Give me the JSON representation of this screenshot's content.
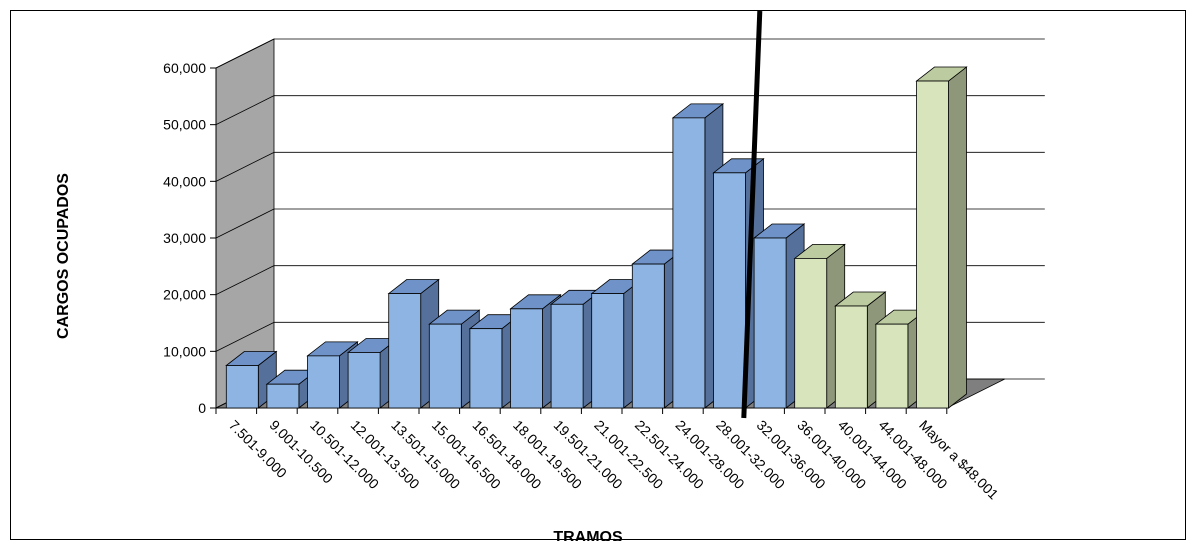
{
  "chart_data": {
    "type": "bar",
    "title": "",
    "xlabel": "TRAMOS",
    "ylabel": "CARGOS OCUPADOS",
    "ylim": [
      0,
      60000
    ],
    "yticks": [
      "0",
      "10,000",
      "20,000",
      "30,000",
      "40,000",
      "50,000",
      "60,000"
    ],
    "ytick_values": [
      0,
      10000,
      20000,
      30000,
      40000,
      50000,
      60000
    ],
    "grid": true,
    "three_d": true,
    "categories": [
      "7.501-9.000",
      "9.001-10.500",
      "10.501-12.000",
      "12.001-13.500",
      "13.501-15.000",
      "15.001-16.500",
      "16.501-18.000",
      "18.001-19.500",
      "19.501-21.000",
      "21.001-22.500",
      "22.501-24.000",
      "24.001-28.000",
      "28.001-32.000",
      "32.001-36.000",
      "36.001-40.000",
      "40.001-44.000",
      "44.001-48.000",
      "Mayor a $48.001"
    ],
    "values": [
      7500,
      4200,
      9200,
      9800,
      20200,
      14800,
      14000,
      17500,
      18300,
      20200,
      25400,
      51200,
      41500,
      30000,
      26400,
      18000,
      14800,
      57700
    ],
    "bar_colors": [
      "#8db4e2",
      "#8db4e2",
      "#8db4e2",
      "#8db4e2",
      "#8db4e2",
      "#8db4e2",
      "#8db4e2",
      "#8db4e2",
      "#8db4e2",
      "#8db4e2",
      "#8db4e2",
      "#8db4e2",
      "#8db4e2",
      "#8db4e2",
      "#d7e4bc",
      "#d7e4bc",
      "#d7e4bc",
      "#d7e4bc"
    ],
    "divider_between": [
      12,
      13
    ]
  },
  "colors": {
    "blue_front": "#8db4e2",
    "blue_top": "#6f93c9",
    "blue_side": "#55709a",
    "green_front": "#d7e4bc",
    "green_top": "#bccba0",
    "green_side": "#8e977a",
    "back_wall": "#ffffff",
    "side_wall": "#a6a6a6",
    "floor": "#7f7f7f",
    "gridline": "#000000",
    "divider": "#000000"
  }
}
